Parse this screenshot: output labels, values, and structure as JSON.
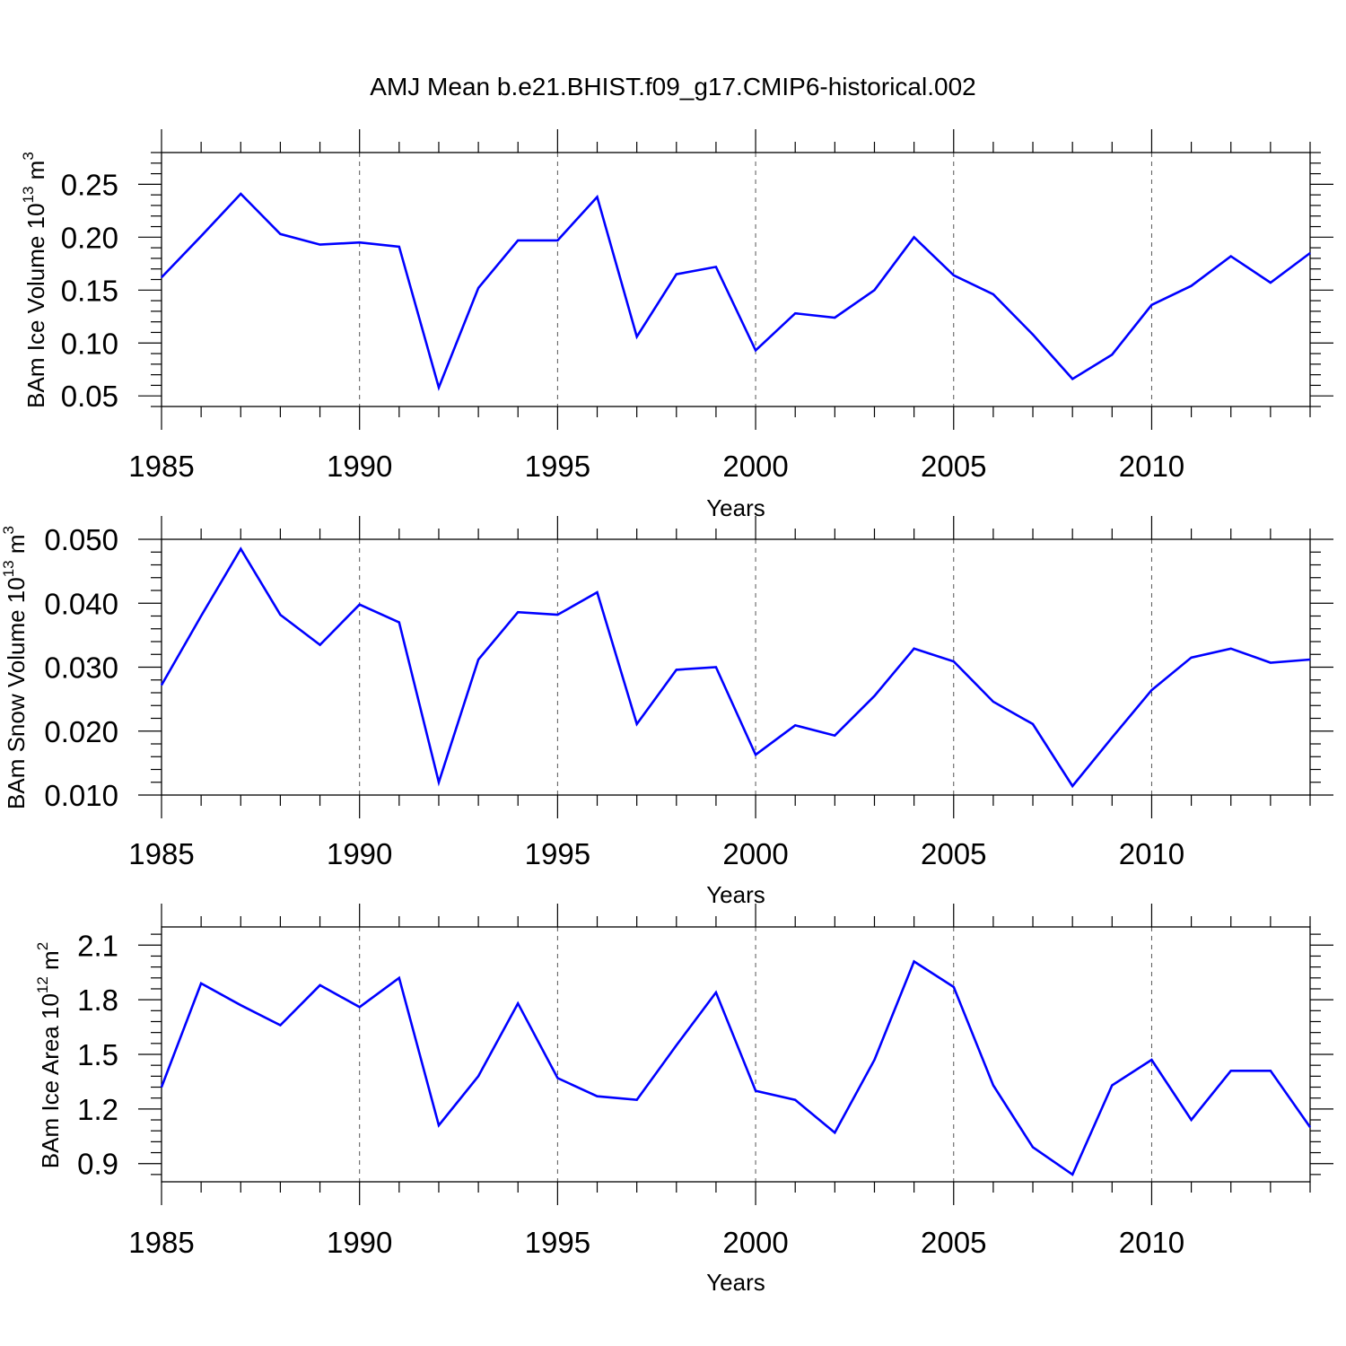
{
  "title": "AMJ Mean b.e21.BHIST.f09_g17.CMIP6-historical.002",
  "line_color": "#0000ff",
  "chart_data": [
    {
      "type": "line",
      "xlabel": "Years",
      "ylabel": {
        "main": "BAm Ice Volume 10",
        "exp": "13",
        "unit": " m",
        "unit_exp": "3"
      },
      "xlim": [
        1985,
        2014
      ],
      "ylim": [
        0.04,
        0.28
      ],
      "xticks": [
        1985,
        1990,
        1995,
        2000,
        2005,
        2010
      ],
      "yticks": [
        "0.05",
        "0.10",
        "0.15",
        "0.20",
        "0.25"
      ],
      "grid": "dashed vertical at major x ticks",
      "x": [
        1985,
        1986,
        1987,
        1988,
        1989,
        1990,
        1991,
        1992,
        1993,
        1994,
        1995,
        1996,
        1997,
        1998,
        1999,
        2000,
        2001,
        2002,
        2003,
        2004,
        2005,
        2006,
        2007,
        2008,
        2009,
        2010,
        2011,
        2012,
        2013,
        2014
      ],
      "values": [
        0.162,
        0.201,
        0.241,
        0.203,
        0.193,
        0.195,
        0.191,
        0.058,
        0.152,
        0.197,
        0.197,
        0.238,
        0.106,
        0.165,
        0.172,
        0.093,
        0.128,
        0.124,
        0.15,
        0.2,
        0.164,
        0.146,
        0.108,
        0.066,
        0.089,
        0.136,
        0.154,
        0.182,
        0.157,
        0.185
      ]
    },
    {
      "type": "line",
      "xlabel": "Years",
      "ylabel": {
        "main": "BAm Snow Volume 10",
        "exp": "13",
        "unit": " m",
        "unit_exp": "3"
      },
      "xlim": [
        1985,
        2014
      ],
      "ylim": [
        0.01,
        0.05
      ],
      "xticks": [
        1985,
        1990,
        1995,
        2000,
        2005,
        2010
      ],
      "yticks": [
        "0.010",
        "0.020",
        "0.030",
        "0.040",
        "0.050"
      ],
      "grid": "dashed vertical at major x ticks",
      "x": [
        1985,
        1986,
        1987,
        1988,
        1989,
        1990,
        1991,
        1992,
        1993,
        1994,
        1995,
        1996,
        1997,
        1998,
        1999,
        2000,
        2001,
        2002,
        2003,
        2004,
        2005,
        2006,
        2007,
        2008,
        2009,
        2010,
        2011,
        2012,
        2013,
        2014
      ],
      "values": [
        0.0272,
        0.038,
        0.0485,
        0.0382,
        0.0335,
        0.0398,
        0.037,
        0.012,
        0.0312,
        0.0386,
        0.0382,
        0.0417,
        0.0211,
        0.0296,
        0.03,
        0.0163,
        0.0209,
        0.0193,
        0.0255,
        0.0329,
        0.0309,
        0.0246,
        0.0211,
        0.0114,
        0.019,
        0.0264,
        0.0315,
        0.0329,
        0.0307,
        0.0312
      ]
    },
    {
      "type": "line",
      "xlabel": "Years",
      "ylabel": {
        "main": "BAm Ice Area 10",
        "exp": "12",
        "unit": " m",
        "unit_exp": "2"
      },
      "xlim": [
        1985,
        2014
      ],
      "ylim": [
        0.8,
        2.2
      ],
      "xticks": [
        1985,
        1990,
        1995,
        2000,
        2005,
        2010
      ],
      "yticks": [
        "0.9",
        "1.2",
        "1.5",
        "1.8",
        "2.1"
      ],
      "grid": "dashed vertical at major x ticks",
      "x": [
        1985,
        1986,
        1987,
        1988,
        1989,
        1990,
        1991,
        1992,
        1993,
        1994,
        1995,
        1996,
        1997,
        1998,
        1999,
        2000,
        2001,
        2002,
        2003,
        2004,
        2005,
        2006,
        2007,
        2008,
        2009,
        2010,
        2011,
        2012,
        2013,
        2014
      ],
      "values": [
        1.32,
        1.89,
        1.77,
        1.66,
        1.88,
        1.76,
        1.92,
        1.11,
        1.38,
        1.78,
        1.37,
        1.27,
        1.25,
        1.55,
        1.84,
        1.3,
        1.25,
        1.07,
        1.47,
        2.01,
        1.87,
        1.33,
        0.99,
        0.84,
        1.33,
        1.47,
        1.14,
        1.41,
        1.41,
        1.1
      ]
    }
  ]
}
